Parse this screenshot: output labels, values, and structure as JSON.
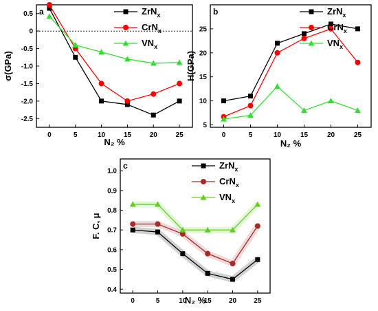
{
  "chart_data": [
    {
      "type": "line",
      "panel_label": "a",
      "xlabel": "N₂ %",
      "ylabel": "σ(GPa)",
      "x": [
        0,
        5,
        10,
        15,
        20,
        25
      ],
      "xlim": [
        -2.5,
        27.5
      ],
      "ylim": [
        -2.75,
        0.75
      ],
      "xticks": [
        0,
        5,
        10,
        15,
        20,
        25
      ],
      "yticks": [
        0.5,
        0.0,
        -0.5,
        -1.0,
        -1.5,
        -2.0,
        -2.5
      ],
      "ytick_labels": [
        "0.5",
        "0",
        "-0.5",
        "-1.0",
        "-1.5",
        "-2.0",
        "-2.5"
      ],
      "reference_line": 0,
      "legend_position": "top-right",
      "series": [
        {
          "name": "ZrNx",
          "color": "#000000",
          "marker": "square",
          "values": [
            0.65,
            -0.75,
            -2.0,
            -2.1,
            -2.4,
            -2.0
          ]
        },
        {
          "name": "CrNx",
          "color": "#ff0000",
          "marker": "circle",
          "values": [
            0.75,
            -0.5,
            -1.5,
            -2.0,
            -1.8,
            -1.5
          ]
        },
        {
          "name": "VNx",
          "color": "#33dd33",
          "marker": "triangle",
          "values": [
            0.42,
            -0.4,
            -0.6,
            -0.8,
            -0.92,
            -0.9
          ]
        }
      ]
    },
    {
      "type": "line",
      "panel_label": "b",
      "xlabel": "N₂ %",
      "ylabel": "H(GPa)",
      "x": [
        0,
        5,
        10,
        15,
        20,
        25
      ],
      "xlim": [
        -2.5,
        27.5
      ],
      "ylim": [
        4.5,
        30
      ],
      "xticks": [
        0,
        5,
        10,
        15,
        20,
        25
      ],
      "yticks": [
        5,
        10,
        15,
        20,
        25
      ],
      "ytick_labels": [
        "5",
        "10",
        "15",
        "20",
        "25"
      ],
      "legend_position": "top-right",
      "series": [
        {
          "name": "ZrNx",
          "color": "#000000",
          "marker": "square",
          "values": [
            10,
            11,
            22,
            24,
            26,
            25
          ]
        },
        {
          "name": "CrNx",
          "color": "#ff0000",
          "marker": "circle",
          "values": [
            6.7,
            9,
            20,
            23,
            25,
            18
          ]
        },
        {
          "name": "VNx",
          "color": "#33dd33",
          "marker": "triangle",
          "values": [
            6.2,
            7,
            13,
            8,
            10,
            8
          ]
        }
      ]
    },
    {
      "type": "line",
      "panel_label": "c",
      "xlabel": "N₂ %",
      "ylabel": "F. C, μ",
      "x": [
        0,
        5,
        10,
        15,
        20,
        25
      ],
      "xlim": [
        -2.5,
        27.5
      ],
      "ylim": [
        0.38,
        1.06
      ],
      "xticks": [
        0,
        5,
        10,
        15,
        20,
        25
      ],
      "yticks": [
        0.4,
        0.5,
        0.6,
        0.7,
        0.8,
        0.9,
        1.0
      ],
      "ytick_labels": [
        "0.4",
        "0.5",
        "0.6",
        "0.7",
        "0.8",
        "0.9",
        "1.0"
      ],
      "legend_position": "top-right",
      "series": [
        {
          "name": "ZrNx",
          "color": "#000000",
          "marker": "square",
          "values": [
            0.7,
            0.69,
            0.58,
            0.48,
            0.45,
            0.55
          ]
        },
        {
          "name": "CrNx",
          "color": "#a52a2a",
          "marker": "circle",
          "values": [
            0.73,
            0.73,
            0.68,
            0.58,
            0.53,
            0.72
          ]
        },
        {
          "name": "VNx",
          "color": "#66cc22",
          "marker": "triangle",
          "values": [
            0.83,
            0.83,
            0.7,
            0.7,
            0.7,
            0.83
          ]
        }
      ]
    }
  ]
}
